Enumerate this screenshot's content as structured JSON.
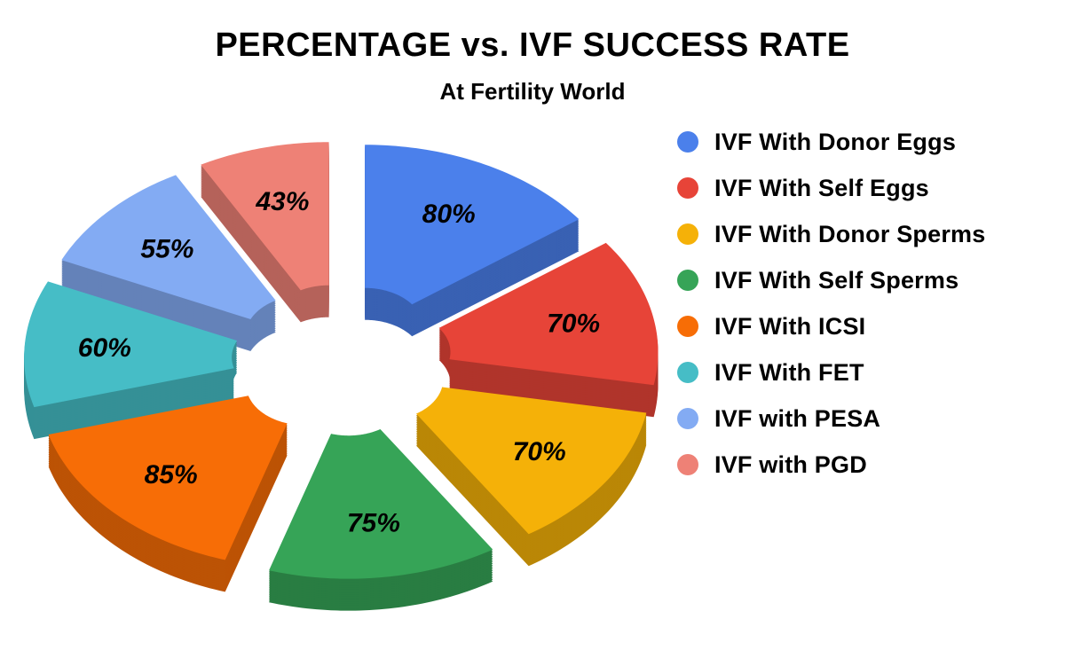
{
  "header": {
    "title": "PERCENTAGE vs. IVF SUCCESS RATE",
    "subtitle": "At Fertility World"
  },
  "chart_data": {
    "type": "pie",
    "style": "3d-exploded-donut",
    "title": "PERCENTAGE vs. IVF SUCCESS RATE",
    "subtitle": "At Fertility World",
    "unit": "%",
    "categories": [
      "IVF With Donor Eggs",
      "IVF With Self Eggs",
      "IVF With Donor Sperms",
      "IVF With Self Sperms",
      "IVF With ICSI",
      "IVF With FET",
      "IVF with PESA",
      "IVF with PGD"
    ],
    "values": [
      80,
      70,
      70,
      75,
      85,
      60,
      55,
      43
    ],
    "slice_labels": [
      "80%",
      "70%",
      "70%",
      "75%",
      "85%",
      "60%",
      "55%",
      "43%"
    ],
    "colors": [
      "#4B80EB",
      "#E74438",
      "#F5B108",
      "#36A457",
      "#F76D06",
      "#46BDC6",
      "#83ABF3",
      "#EE8176"
    ],
    "legend_position": "right",
    "start_angle_deg": -90,
    "direction": "clockwise",
    "label_text_color": "#000000"
  }
}
